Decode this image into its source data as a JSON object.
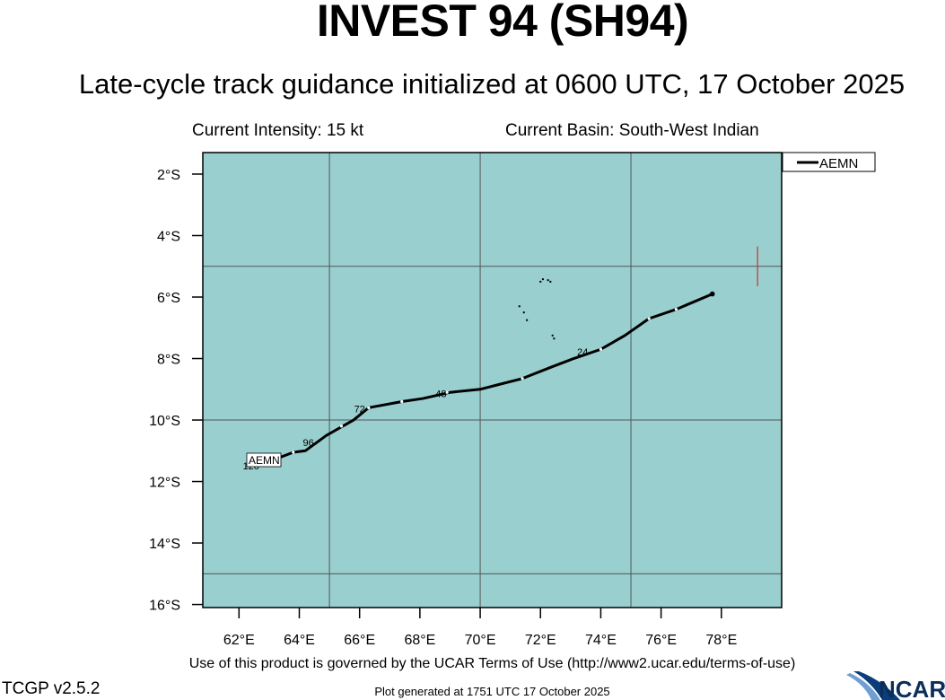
{
  "header": {
    "title": "INVEST 94 (SH94)",
    "subtitle": "Late-cycle track guidance initialized at 0600 UTC, 17 October 2025"
  },
  "info": {
    "intensity": "Current Intensity: 15 kt",
    "basin": "Current Basin: South-West Indian"
  },
  "map": {
    "lon_range": [
      60.8,
      80.0
    ],
    "lat_range": [
      -16.1,
      -1.3
    ],
    "lon_ticks": [
      {
        "value": 62,
        "label": "62°E"
      },
      {
        "value": 64,
        "label": "64°E"
      },
      {
        "value": 66,
        "label": "66°E"
      },
      {
        "value": 68,
        "label": "68°E"
      },
      {
        "value": 70,
        "label": "70°E"
      },
      {
        "value": 72,
        "label": "72°E"
      },
      {
        "value": 74,
        "label": "74°E"
      },
      {
        "value": 76,
        "label": "76°E"
      },
      {
        "value": 78,
        "label": "78°E"
      }
    ],
    "lat_ticks": [
      {
        "value": -2,
        "label": "2°S"
      },
      {
        "value": -4,
        "label": "4°S"
      },
      {
        "value": -6,
        "label": "6°S"
      },
      {
        "value": -8,
        "label": "8°S"
      },
      {
        "value": -10,
        "label": "10°S"
      },
      {
        "value": -12,
        "label": "12°S"
      },
      {
        "value": -14,
        "label": "14°S"
      },
      {
        "value": -16,
        "label": "16°S"
      }
    ],
    "grid_lons": [
      65,
      70,
      75
    ],
    "grid_lats": [
      -5,
      -10,
      -15
    ],
    "ocean_color": "#99cfcf",
    "track_color": "#000000",
    "legend_entry": "AEMN",
    "track_label": "AEMN",
    "track": [
      [
        77.7,
        -5.9
      ],
      [
        76.5,
        -6.4
      ],
      [
        75.6,
        -6.7
      ],
      [
        74.8,
        -7.25
      ],
      [
        74.0,
        -7.7
      ],
      [
        73.1,
        -8.0
      ],
      [
        72.3,
        -8.3
      ],
      [
        71.4,
        -8.65
      ],
      [
        70.6,
        -8.85
      ],
      [
        70.0,
        -9.0
      ],
      [
        69.0,
        -9.1
      ],
      [
        68.1,
        -9.3
      ],
      [
        67.4,
        -9.4
      ],
      [
        66.3,
        -9.6
      ],
      [
        65.8,
        -10.0
      ],
      [
        64.9,
        -10.5
      ],
      [
        64.2,
        -11.0
      ],
      [
        63.8,
        -11.05
      ],
      [
        63.4,
        -11.2
      ],
      [
        62.7,
        -11.35
      ]
    ],
    "interval_markers": [
      [
        76.5,
        -6.4
      ],
      [
        75.6,
        -6.7
      ],
      [
        74.0,
        -7.7
      ],
      [
        71.4,
        -8.65
      ],
      [
        68.9,
        -9.1
      ],
      [
        67.4,
        -9.4
      ],
      [
        66.3,
        -9.6
      ],
      [
        65.4,
        -10.2
      ],
      [
        63.8,
        -11.05
      ],
      [
        63.0,
        -11.3
      ]
    ],
    "forecast_hours": [
      {
        "text": "24",
        "lon": 73.4,
        "lat": -7.9
      },
      {
        "text": "48",
        "lon": 68.7,
        "lat": -9.25
      },
      {
        "text": "72",
        "lon": 66.0,
        "lat": -9.75
      },
      {
        "text": "96",
        "lon": 64.3,
        "lat": -10.85
      },
      {
        "text": "120",
        "lon": 62.4,
        "lat": -11.6
      }
    ],
    "islands": [
      [
        72.0,
        -5.5
      ],
      [
        72.08,
        -5.42
      ],
      [
        72.25,
        -5.45
      ],
      [
        72.33,
        -5.5
      ],
      [
        71.3,
        -6.3
      ],
      [
        71.45,
        -6.5
      ],
      [
        71.55,
        -6.75
      ],
      [
        72.4,
        -7.25
      ],
      [
        72.45,
        -7.35
      ]
    ],
    "marker_segment": {
      "lon": 79.2,
      "lat_top": -4.35,
      "lat_bottom": -5.65,
      "color": "#d03030"
    }
  },
  "footer": {
    "terms": "Use of this product is governed by the UCAR Terms of Use (http://www2.ucar.edu/terms-of-use)",
    "version": "TCGP v2.5.2",
    "generated": "Plot generated at 1751 UTC   17 October 2025",
    "logo_text": "NCAR"
  }
}
